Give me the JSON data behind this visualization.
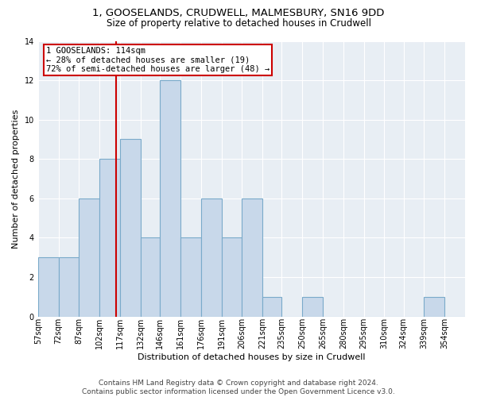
{
  "title_line1": "1, GOOSELANDS, CRUDWELL, MALMESBURY, SN16 9DD",
  "title_line2": "Size of property relative to detached houses in Crudwell",
  "xlabel": "Distribution of detached houses by size in Crudwell",
  "ylabel": "Number of detached properties",
  "bin_labels": [
    "57sqm",
    "72sqm",
    "87sqm",
    "102sqm",
    "117sqm",
    "132sqm",
    "146sqm",
    "161sqm",
    "176sqm",
    "191sqm",
    "206sqm",
    "221sqm",
    "235sqm",
    "250sqm",
    "265sqm",
    "280sqm",
    "295sqm",
    "310sqm",
    "324sqm",
    "339sqm",
    "354sqm"
  ],
  "bin_edges": [
    57,
    72,
    87,
    102,
    117,
    132,
    146,
    161,
    176,
    191,
    206,
    221,
    235,
    250,
    265,
    280,
    295,
    310,
    324,
    339,
    354,
    369
  ],
  "counts": [
    3,
    3,
    6,
    8,
    9,
    4,
    12,
    4,
    6,
    4,
    6,
    1,
    0,
    1,
    0,
    0,
    0,
    0,
    0,
    1,
    0
  ],
  "bar_facecolor": "#c8d8ea",
  "bar_edgecolor": "#7aaaca",
  "bar_linewidth": 0.8,
  "vline_x": 114,
  "vline_color": "#cc0000",
  "vline_linewidth": 1.5,
  "annotation_text": "1 GOOSELANDS: 114sqm\n← 28% of detached houses are smaller (19)\n72% of semi-detached houses are larger (48) →",
  "annotation_box_edgecolor": "#cc0000",
  "annotation_box_facecolor": "white",
  "ylim": [
    0,
    14
  ],
  "yticks": [
    0,
    2,
    4,
    6,
    8,
    10,
    12,
    14
  ],
  "fig_background": "#ffffff",
  "plot_background": "#e8eef4",
  "grid_color": "#ffffff",
  "title_fontsize": 9.5,
  "subtitle_fontsize": 8.5,
  "axis_label_fontsize": 8,
  "tick_fontsize": 7,
  "annotation_fontsize": 7.5,
  "footer_fontsize": 6.5,
  "footer_line1": "Contains HM Land Registry data © Crown copyright and database right 2024.",
  "footer_line2": "Contains public sector information licensed under the Open Government Licence v3.0."
}
